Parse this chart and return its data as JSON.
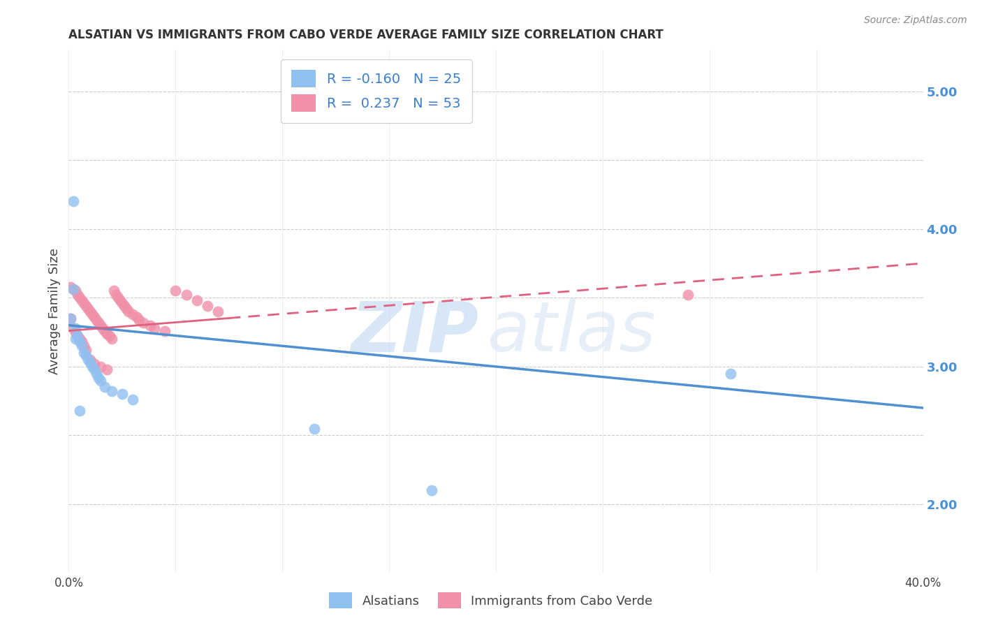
{
  "title": "ALSATIAN VS IMMIGRANTS FROM CABO VERDE AVERAGE FAMILY SIZE CORRELATION CHART",
  "source": "Source: ZipAtlas.com",
  "ylabel": "Average Family Size",
  "right_yticks": [
    2.0,
    3.0,
    4.0,
    5.0
  ],
  "watermark_zip": "ZIP",
  "watermark_atlas": "atlas",
  "blue_color": "#90c0f0",
  "pink_color": "#f090a8",
  "blue_line_color": "#5090d0",
  "pink_line_color": "#e06080",
  "blue_R": -0.16,
  "blue_N": 25,
  "pink_R": 0.237,
  "pink_N": 53,
  "xlim": [
    0.0,
    0.4
  ],
  "ylim": [
    1.5,
    5.3
  ],
  "blue_scatter_x": [
    0.001,
    0.002,
    0.003,
    0.003,
    0.004,
    0.005,
    0.005,
    0.006,
    0.007,
    0.008,
    0.009,
    0.01,
    0.011,
    0.012,
    0.013,
    0.014,
    0.015,
    0.017,
    0.02,
    0.025,
    0.03,
    0.002,
    0.115,
    0.17,
    0.31
  ],
  "blue_scatter_y": [
    3.35,
    3.56,
    3.28,
    3.2,
    3.22,
    3.18,
    2.68,
    3.15,
    3.1,
    3.08,
    3.05,
    3.03,
    3.0,
    2.98,
    2.95,
    2.92,
    2.9,
    2.85,
    2.82,
    2.8,
    2.76,
    4.2,
    2.55,
    2.1,
    2.95
  ],
  "pink_scatter_x": [
    0.001,
    0.001,
    0.002,
    0.002,
    0.003,
    0.003,
    0.004,
    0.004,
    0.005,
    0.005,
    0.006,
    0.006,
    0.007,
    0.007,
    0.008,
    0.008,
    0.009,
    0.01,
    0.011,
    0.012,
    0.013,
    0.014,
    0.015,
    0.016,
    0.017,
    0.018,
    0.019,
    0.02,
    0.021,
    0.022,
    0.023,
    0.024,
    0.025,
    0.026,
    0.027,
    0.028,
    0.03,
    0.032,
    0.033,
    0.035,
    0.038,
    0.04,
    0.045,
    0.05,
    0.055,
    0.06,
    0.065,
    0.07,
    0.01,
    0.012,
    0.015,
    0.018,
    0.29
  ],
  "pink_scatter_y": [
    3.58,
    3.35,
    3.56,
    3.28,
    3.55,
    3.25,
    3.52,
    3.22,
    3.5,
    3.2,
    3.48,
    3.18,
    3.46,
    3.15,
    3.44,
    3.12,
    3.42,
    3.4,
    3.38,
    3.36,
    3.34,
    3.32,
    3.3,
    3.28,
    3.26,
    3.24,
    3.22,
    3.2,
    3.55,
    3.52,
    3.5,
    3.48,
    3.46,
    3.44,
    3.42,
    3.4,
    3.38,
    3.36,
    3.34,
    3.32,
    3.3,
    3.28,
    3.26,
    3.55,
    3.52,
    3.48,
    3.44,
    3.4,
    3.05,
    3.02,
    3.0,
    2.98,
    3.52
  ]
}
